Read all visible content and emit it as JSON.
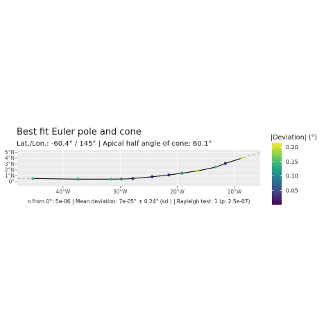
{
  "chart_data": {
    "type": "scatter",
    "title": "Best fit Euler pole and cone",
    "subtitle": "Lat./Lon.: -60.4° / 145° | Apical half angle of cone: 60.1°",
    "caption": "n from 0°: 5e-06 | Mean deviation: 7e-05° ± 0.24° (sd.) | Rayleigh test: 1 (p: 2.5e-07)",
    "xlim": [
      -48,
      -5.5
    ],
    "ylim": [
      -0.7,
      5.4
    ],
    "x_ticks": [
      -40,
      -30,
      -20,
      -10
    ],
    "x_tick_labels": [
      "40°W",
      "30°W",
      "20°W",
      "10°W"
    ],
    "y_ticks": [
      0,
      1,
      2,
      3,
      4,
      5
    ],
    "y_tick_labels": [
      "0°",
      "1°N",
      "2°N",
      "3°N",
      "4°N",
      "5°N"
    ],
    "grid": true,
    "color_scale": "viridis",
    "color_range": [
      0,
      0.215
    ],
    "legend": {
      "title": "|Deviation| (°)",
      "position": "right",
      "ticks": [
        0.05,
        0.1,
        0.15,
        0.2
      ],
      "tick_labels": [
        "0.05",
        "0.10",
        "0.15",
        "0.20"
      ]
    },
    "points": [
      {
        "x": -45.3,
        "y": 0.55,
        "deviation": 0.15
      },
      {
        "x": -37.4,
        "y": 0.45,
        "deviation": 0.12
      },
      {
        "x": -31.6,
        "y": 0.45,
        "deviation": 0.14
      },
      {
        "x": -29.8,
        "y": 0.47,
        "deviation": 0.08
      },
      {
        "x": -27.8,
        "y": 0.55,
        "deviation": 0.02
      },
      {
        "x": -24.4,
        "y": 0.85,
        "deviation": 0.01
      },
      {
        "x": -21.5,
        "y": 1.15,
        "deviation": 0.02
      },
      {
        "x": -19.2,
        "y": 1.45,
        "deviation": 0.11
      },
      {
        "x": -16.5,
        "y": 1.85,
        "deviation": 0.2
      },
      {
        "x": -13.3,
        "y": 2.5,
        "deviation": 0.15
      },
      {
        "x": -11.6,
        "y": 3.1,
        "deviation": 0.02
      },
      {
        "x": -8.7,
        "y": 4.0,
        "deviation": 0.21
      }
    ],
    "fit_line": {
      "x_range": [
        -45.3,
        -8.7
      ]
    },
    "cone_extension": {
      "x_range": [
        -48,
        -5.5
      ],
      "style": "dashed"
    }
  }
}
